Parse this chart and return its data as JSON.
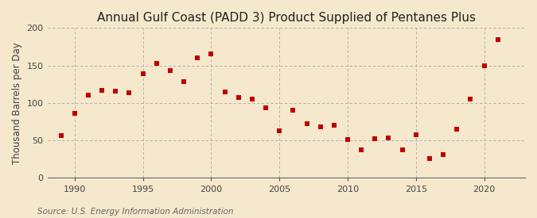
{
  "title": "Annual Gulf Coast (PADD 3) Product Supplied of Pentanes Plus",
  "ylabel": "Thousand Barrels per Day",
  "source": "Source: U.S. Energy Information Administration",
  "years": [
    1989,
    1990,
    1991,
    1992,
    1993,
    1994,
    1995,
    1996,
    1997,
    1998,
    1999,
    2000,
    2001,
    2002,
    2003,
    2004,
    2005,
    2006,
    2007,
    2008,
    2009,
    2010,
    2011,
    2012,
    2013,
    2014,
    2015,
    2016,
    2017,
    2018,
    2019,
    2020,
    2021
  ],
  "values": [
    57,
    86,
    110,
    117,
    116,
    114,
    139,
    153,
    143,
    128,
    160,
    165,
    115,
    107,
    105,
    94,
    63,
    90,
    72,
    68,
    70,
    51,
    38,
    52,
    53,
    38,
    58,
    26,
    31,
    65,
    105,
    150,
    185
  ],
  "marker_color": "#c00000",
  "marker": "s",
  "marker_size": 4.5,
  "background_color": "#f5e8cc",
  "plot_bg_color": "#f5e8cc",
  "grid_color": "#aaaaaa",
  "xlim": [
    1988,
    2023
  ],
  "ylim": [
    0,
    200
  ],
  "yticks": [
    0,
    50,
    100,
    150,
    200
  ],
  "xticks": [
    1990,
    1995,
    2000,
    2005,
    2010,
    2015,
    2020
  ],
  "vgrid_at": [
    1990,
    1995,
    2000,
    2005,
    2010,
    2015,
    2020
  ],
  "title_fontsize": 11,
  "ylabel_fontsize": 8.5,
  "tick_fontsize": 8,
  "source_fontsize": 7.5
}
